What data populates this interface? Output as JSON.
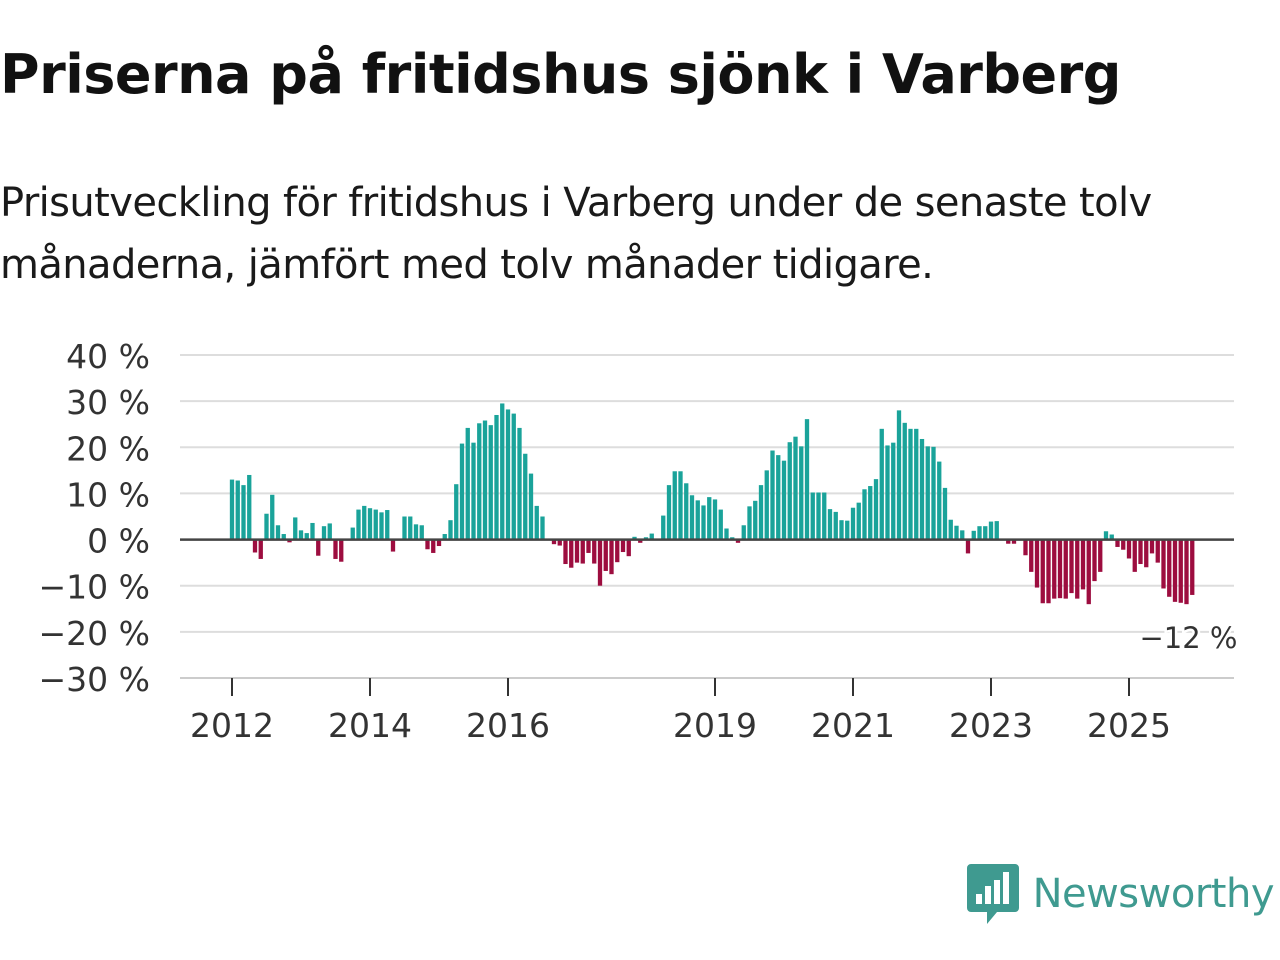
{
  "title": "Priserna på fritidshus sjönk i Varberg",
  "subtitle": "Prisutveckling för fritidshus i Varberg under de senaste tolv månaderna, jämfört med tolv månader tidigare.",
  "logo": {
    "text": "Newsworthy",
    "icon": "newsworthy-logo-icon",
    "color": "#3f9a90"
  },
  "chart_data": {
    "type": "bar",
    "title": "",
    "xlabel": "",
    "ylabel": "",
    "ylim": [
      -30,
      40
    ],
    "yticks": [
      -30,
      -20,
      -10,
      0,
      10,
      20,
      30,
      40
    ],
    "ytick_labels": [
      "−30 %",
      "−20 %",
      "−10 %",
      "0 %",
      "10 %",
      "20 %",
      "30 %",
      "40 %"
    ],
    "xticks": [
      {
        "label": "2012",
        "index": 0
      },
      {
        "label": "2014",
        "index": 24
      },
      {
        "label": "2016",
        "index": 48
      },
      {
        "label": "2019",
        "index": 84
      },
      {
        "label": "2021",
        "index": 108
      },
      {
        "label": "2023",
        "index": 132
      },
      {
        "label": "2025",
        "index": 156
      }
    ],
    "start": "2012-01",
    "frequency": "monthly",
    "grid": true,
    "positive_color": "#1aa39a",
    "negative_color": "#9d0d3f",
    "annotation": {
      "text": "−12 %",
      "index": 166
    },
    "values": [
      13,
      12.8,
      11.8,
      14,
      -2.8,
      -4.2,
      5.6,
      9.7,
      3.1,
      1.2,
      -0.6,
      4.8,
      2,
      1.4,
      3.6,
      -3.5,
      2.9,
      3.5,
      -4.2,
      -4.8,
      0,
      2.6,
      6.5,
      7.3,
      6.8,
      6.5,
      5.9,
      6.4,
      -2.6,
      0,
      5,
      5,
      3.3,
      3.1,
      -2.1,
      -2.9,
      -1.4,
      1.2,
      4.2,
      12,
      20.8,
      24.2,
      21,
      25.2,
      25.8,
      24.8,
      27,
      29.5,
      28.2,
      27.3,
      24.2,
      18.6,
      14.3,
      7.3,
      5,
      0,
      -1,
      -1.3,
      -5.3,
      -6.1,
      -5,
      -5.2,
      -2.9,
      -5.2,
      -10,
      -6.8,
      -7.5,
      -4.9,
      -2.7,
      -3.6,
      0.6,
      -0.7,
      0.5,
      1.3,
      0,
      5.2,
      11.8,
      14.8,
      14.8,
      12.2,
      9.6,
      8.5,
      7.4,
      9.2,
      8.7,
      6.5,
      2.4,
      0.5,
      -0.7,
      3.1,
      7.2,
      8.4,
      11.8,
      15,
      19.3,
      18.3,
      17.1,
      21.1,
      22.3,
      20.2,
      26.1,
      10.2,
      10.2,
      10.2,
      6.6,
      6,
      4.2,
      4.1,
      6.9,
      8,
      10.9,
      11.6,
      13.1,
      24,
      20.4,
      21,
      28,
      25.3,
      24,
      24,
      21.8,
      20.2,
      20.1,
      16.9,
      11.2,
      4.3,
      3,
      2,
      -3,
      1.9,
      2.9,
      2.9,
      3.9,
      4,
      0,
      -0.9,
      -0.9,
      0,
      -3.4,
      -7,
      -10.4,
      -13.8,
      -13.8,
      -12.8,
      -12.7,
      -12.8,
      -11.6,
      -12.8,
      -10.8,
      -14,
      -9,
      -7,
      1.8,
      1.1,
      -1.6,
      -2.2,
      -4.1,
      -7,
      -5.3,
      -6,
      -3,
      -5,
      -10.6,
      -12.4,
      -13.5,
      -13.7,
      -14,
      -12
    ]
  }
}
